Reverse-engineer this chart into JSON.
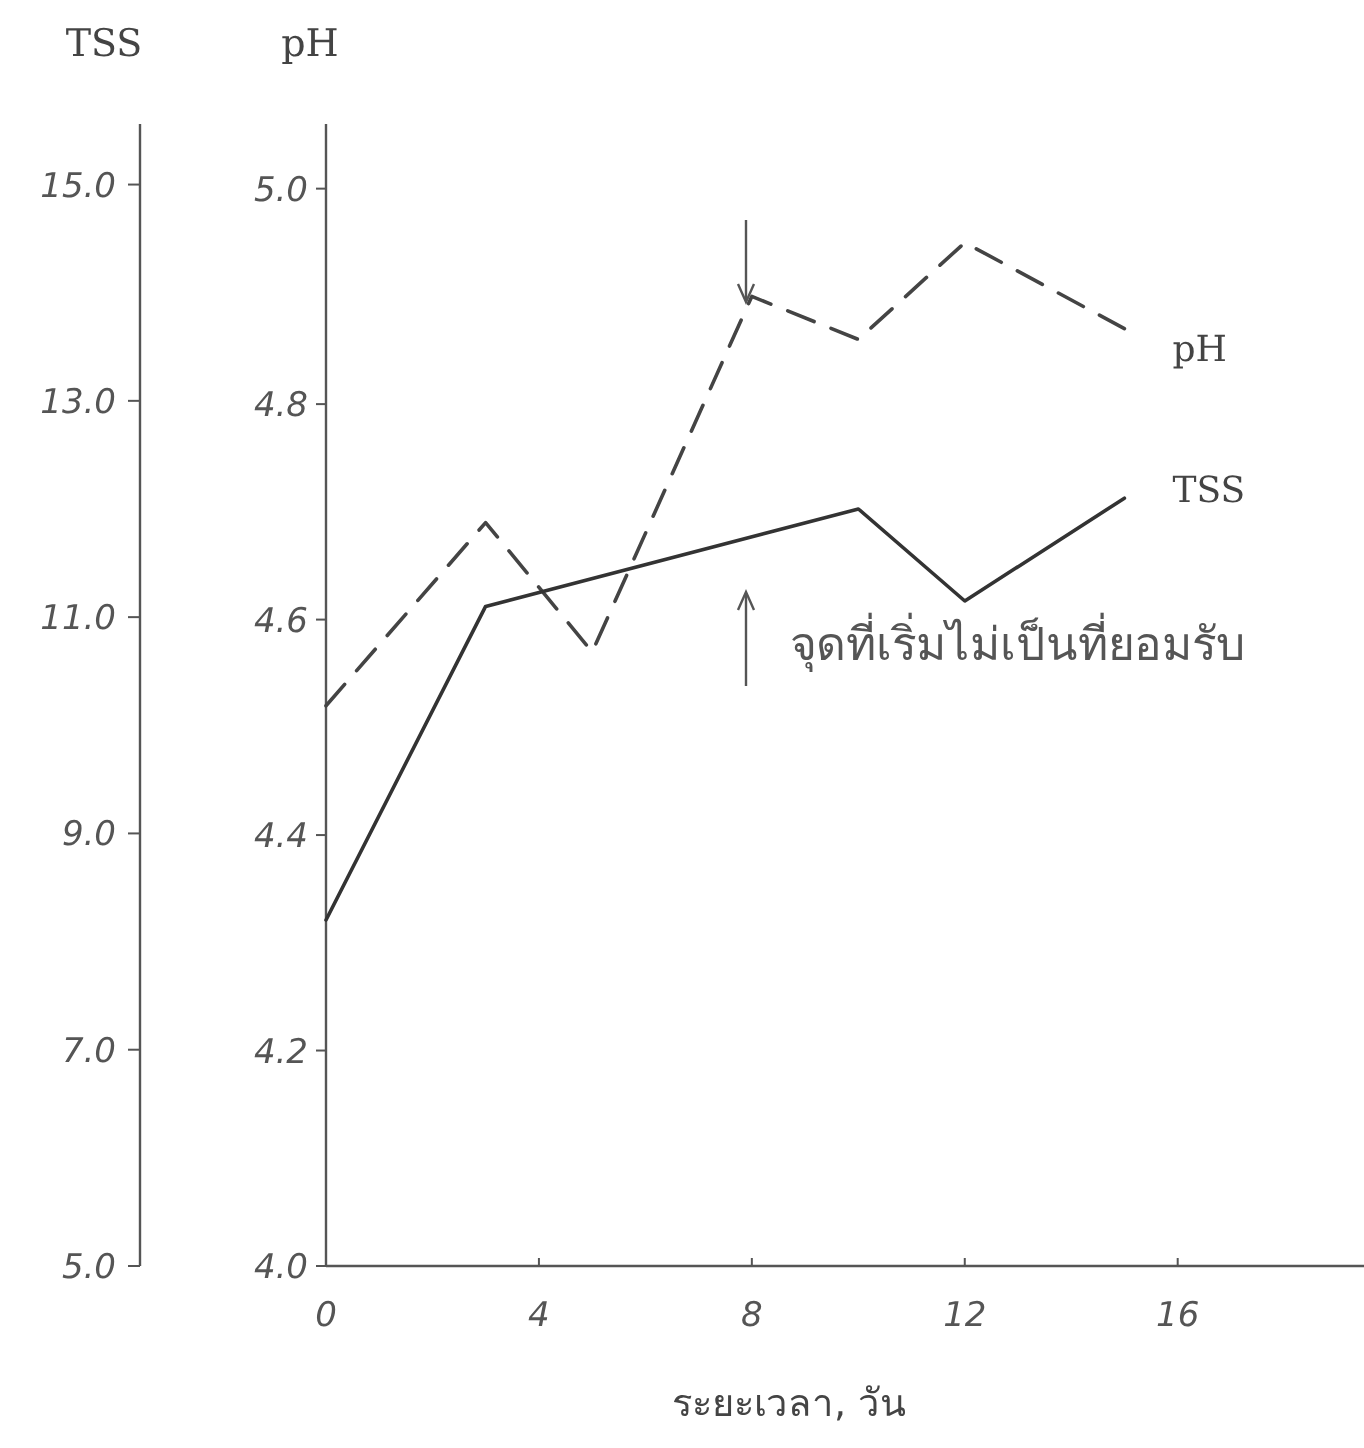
{
  "chart_data": {
    "type": "line",
    "xlabel": "ระยะเวลา, วัน",
    "ylabel": "pH",
    "y2label": "TSS",
    "xlim": [
      0,
      19.5
    ],
    "xticks": [
      0,
      4,
      8,
      12,
      16
    ],
    "ylim": [
      4.0,
      5.06
    ],
    "yticks": [
      {
        "value": 4.0,
        "label": "4.0"
      },
      {
        "value": 4.2,
        "label": "4.2"
      },
      {
        "value": 4.4,
        "label": "4.4"
      },
      {
        "value": 4.6,
        "label": "4.6"
      },
      {
        "value": 4.8,
        "label": "4.8"
      },
      {
        "value": 5.0,
        "label": "5.0"
      }
    ],
    "y2lim": [
      5.0,
      15.56
    ],
    "y2ticks": [
      {
        "value": 5,
        "label": "5.0"
      },
      {
        "value": 7,
        "label": "7.0"
      },
      {
        "value": 9,
        "label": "9.0"
      },
      {
        "value": 11,
        "label": "11.0"
      },
      {
        "value": 13,
        "label": "13.0"
      },
      {
        "value": 15,
        "label": "15.0"
      }
    ],
    "grid": false,
    "legend": false,
    "marker": "none",
    "series": [
      {
        "name": "pH",
        "color": "#444444",
        "line_style": "dashed",
        "x": [
          0,
          3,
          5,
          8,
          10,
          12,
          15
        ],
        "values": [
          4.52,
          4.69,
          4.57,
          4.9,
          4.86,
          4.95,
          4.87
        ]
      },
      {
        "name": "TSS",
        "color": "#333333",
        "line_style": "solid",
        "axis": "y2",
        "x": [
          0,
          3,
          10,
          12,
          15
        ],
        "values": [
          8.2,
          11.1,
          12.0,
          11.15,
          12.1
        ]
      }
    ],
    "annotations": [
      "จุดที่เริ่มไม่เป็นที่ยอมรับ"
    ]
  }
}
